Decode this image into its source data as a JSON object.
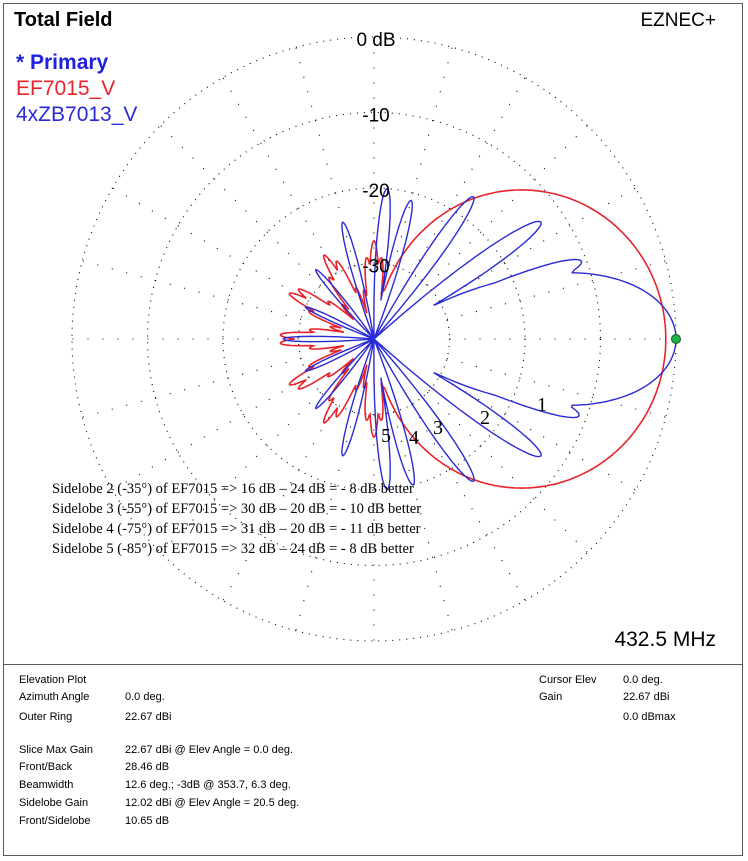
{
  "window": {
    "title": "Total Field",
    "brand": "EZNEC+",
    "frequency": "432.5 MHz"
  },
  "legend": {
    "primary": "* Primary",
    "series1": "EF7015_V",
    "series2": "4xZB7013_V"
  },
  "colors": {
    "series1": "#e8242a",
    "series2": "#2a2ad6",
    "grid": "#000000",
    "cursor_marker": "#22b14c"
  },
  "chart_data": {
    "type": "polar",
    "title": "Total Field",
    "ring_labels": [
      "0 dB",
      "-10",
      "-20",
      "-30"
    ],
    "ring_levels_db": [
      0,
      -10,
      -20,
      -30
    ],
    "outer_ring_dbi": 22.67,
    "angle_grid_step_deg": 15,
    "cursor": {
      "angle_deg": 0,
      "gain_db": 0
    },
    "series": [
      {
        "name": "EF7015_V",
        "color": "#e8242a",
        "main_lobe": {
          "peak_db": -1.35,
          "beamwidth_deg": 56
        },
        "lobes_deg": [
          -5,
          0,
          5,
          20,
          35,
          50,
          65,
          80,
          100,
          120,
          140,
          160,
          180,
          200,
          215,
          230,
          245,
          260,
          275,
          290,
          305,
          320,
          340
        ],
        "sidelobe_levels_db": [
          -30,
          -30,
          -34,
          -31,
          -35,
          -33,
          -32,
          -34,
          -32,
          -33,
          -31,
          -35,
          -32,
          -34,
          -33,
          -30,
          -32
        ]
      },
      {
        "name": "4xZB7013_V",
        "color": "#2a2ad6",
        "main_lobe": {
          "peak_db": 0.0,
          "beamwidth_deg": 12.6
        },
        "sidelobes": [
          {
            "angle_deg": 20.5,
            "level_db": -10.65
          },
          {
            "angle_deg": 35,
            "level_db": -13
          },
          {
            "angle_deg": 55,
            "level_db": -17
          },
          {
            "angle_deg": 75,
            "level_db": -21
          },
          {
            "angle_deg": 85,
            "level_db": -20
          },
          {
            "angle_deg": -20.5,
            "level_db": -11
          },
          {
            "angle_deg": -35,
            "level_db": -13
          },
          {
            "angle_deg": -55,
            "level_db": -17
          },
          {
            "angle_deg": -75,
            "level_db": -20
          },
          {
            "angle_deg": -85,
            "level_db": -20
          },
          {
            "angle_deg": 105,
            "level_db": -24
          },
          {
            "angle_deg": -105,
            "level_db": -24
          },
          {
            "angle_deg": 130,
            "level_db": -28
          },
          {
            "angle_deg": -130,
            "level_db": -28
          },
          {
            "angle_deg": 155,
            "level_db": -30
          },
          {
            "angle_deg": -155,
            "level_db": -30
          },
          {
            "angle_deg": 180,
            "level_db": -28
          }
        ]
      }
    ],
    "lobe_numbers": [
      "1",
      "2",
      "3",
      "4",
      "5"
    ],
    "annotations": [
      "Sidelobe 2 (-35°) of EF7015 => 16 dB – 24 dB = -  8 dB better",
      "Sidelobe 3 (-55°) of EF7015 => 30 dB – 20 dB = - 10 dB better",
      "Sidelobe 4 (-75°) of EF7015 => 31 dB – 20 dB = - 11 dB better",
      "Sidelobe 5 (-85°) of EF7015 => 32 dB – 24 dB = -  8 dB better"
    ]
  },
  "info": {
    "left": [
      {
        "label": "Elevation Plot",
        "value": ""
      },
      {
        "label": "Azimuth Angle",
        "value": "0.0 deg."
      },
      {
        "label": "Outer Ring",
        "value": "22.67 dBi"
      },
      {
        "label": "",
        "value": ""
      },
      {
        "label": "Slice Max Gain",
        "value": "22.67 dBi @ Elev Angle = 0.0 deg."
      },
      {
        "label": "Front/Back",
        "value": "28.46 dB"
      },
      {
        "label": "Beamwidth",
        "value": "12.6 deg.; -3dB @ 353.7, 6.3 deg."
      },
      {
        "label": "Sidelobe Gain",
        "value": "12.02 dBi @ Elev Angle = 20.5 deg."
      },
      {
        "label": "Front/Sidelobe",
        "value": "10.65 dB"
      }
    ],
    "right": [
      {
        "label": "Cursor Elev",
        "value": "0.0 deg."
      },
      {
        "label": "Gain",
        "value": "22.67 dBi"
      },
      {
        "label": "",
        "value": "0.0 dBmax"
      }
    ]
  }
}
